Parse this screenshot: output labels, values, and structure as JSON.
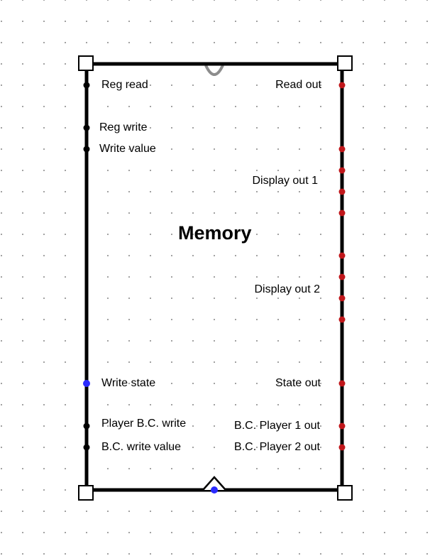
{
  "component": {
    "title": "Memory"
  },
  "colors": {
    "body_stroke": "#000000",
    "input_pin": "#000000",
    "output_pin": "#c0171b",
    "state_pin": "#2a2aff",
    "clock_pin": "#2a2aff",
    "arc": "#8c8c8c",
    "grid_dot": "#9a9a9a"
  },
  "left_pins": [
    {
      "id": "reg-read",
      "label": "Reg read",
      "type": "input"
    },
    {
      "id": "reg-write",
      "label": "Reg write",
      "type": "input"
    },
    {
      "id": "write-value",
      "label": "Write value",
      "type": "input"
    },
    {
      "id": "write-state",
      "label": "Write state",
      "type": "state"
    },
    {
      "id": "player-bc-write",
      "label": "Player B.C. write",
      "type": "input"
    },
    {
      "id": "bc-write-value",
      "label": "B.C. write value",
      "type": "input"
    }
  ],
  "right_pins": [
    {
      "id": "read-out",
      "label": "Read out",
      "type": "output"
    },
    {
      "id": "display-out-1",
      "label": "Display out 1",
      "type": "output"
    },
    {
      "id": "display-out-2",
      "label": "Display out 2",
      "type": "output"
    },
    {
      "id": "state-out",
      "label": "State out",
      "type": "output"
    },
    {
      "id": "bc-player-1-out",
      "label": "B.C. Player 1 out",
      "type": "output"
    },
    {
      "id": "bc-player-2-out",
      "label": "B.C. Player 2 out",
      "type": "output"
    }
  ],
  "bottom_pins": [
    {
      "id": "clock",
      "label": "",
      "type": "clock"
    }
  ]
}
